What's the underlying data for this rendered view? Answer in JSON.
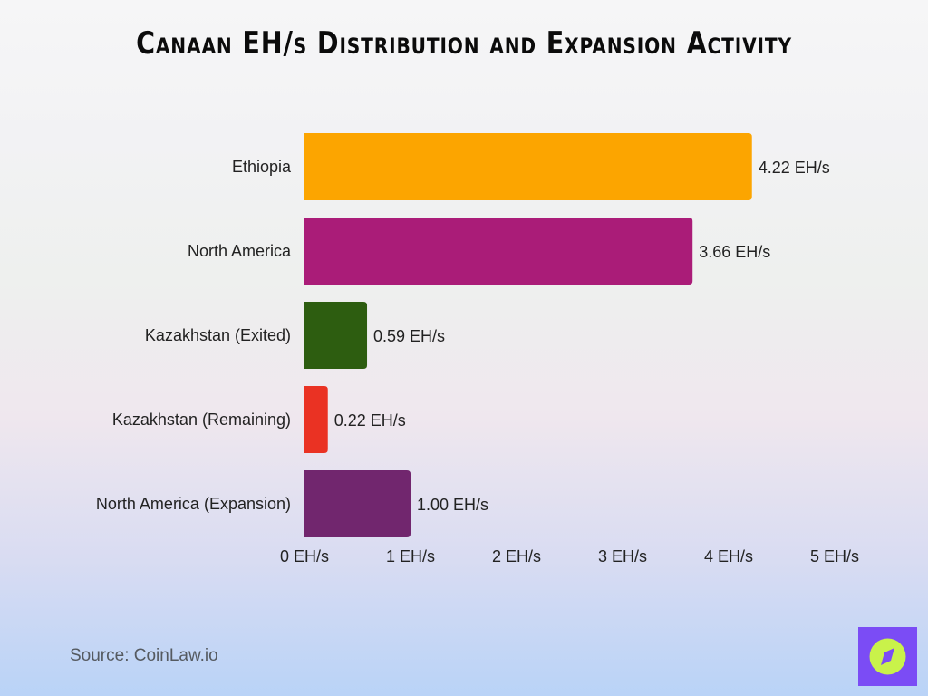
{
  "chart_data": {
    "type": "bar",
    "orientation": "horizontal",
    "title": "Canaan EH/s Distribution and Expansion Activity",
    "categories": [
      "Ethiopia",
      "North America",
      "Kazakhstan (Exited)",
      "Kazakhstan (Remaining)",
      "North America (Expansion)"
    ],
    "values": [
      4.22,
      3.66,
      0.59,
      0.22,
      1.0
    ],
    "data_labels": [
      "4.22 EH/s",
      "3.66 EH/s",
      "0.59 EH/s",
      "0.22 EH/s",
      "1.00 EH/s"
    ],
    "colors": [
      "#fca500",
      "#aa1c78",
      "#2d5d10",
      "#ea3223",
      "#71266e"
    ],
    "xlim": [
      0,
      5
    ],
    "x_ticks": [
      0,
      1,
      2,
      3,
      4,
      5
    ],
    "x_tick_labels": [
      "0 EH/s",
      "1 EH/s",
      "2 EH/s",
      "3 EH/s",
      "4 EH/s",
      "5 EH/s"
    ],
    "xlabel": "",
    "ylabel": "",
    "grid": false,
    "legend": "none"
  },
  "source": "Source: CoinLaw.io",
  "logo": {
    "icon": "compass-icon",
    "bg": "#7b4cf5",
    "fg": "#c9f24a"
  }
}
